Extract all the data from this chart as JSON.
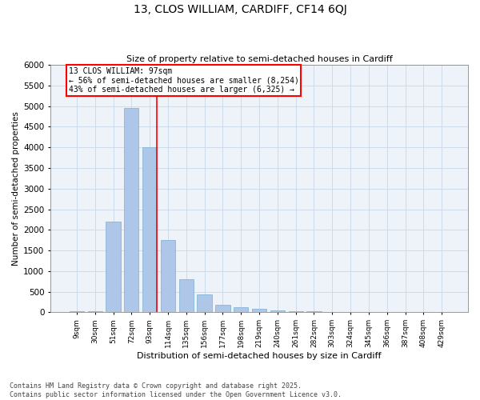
{
  "title": "13, CLOS WILLIAM, CARDIFF, CF14 6QJ",
  "subtitle": "Size of property relative to semi-detached houses in Cardiff",
  "xlabel": "Distribution of semi-detached houses by size in Cardiff",
  "ylabel": "Number of semi-detached properties",
  "categories": [
    "9sqm",
    "30sqm",
    "51sqm",
    "72sqm",
    "93sqm",
    "114sqm",
    "135sqm",
    "156sqm",
    "177sqm",
    "198sqm",
    "219sqm",
    "240sqm",
    "261sqm",
    "282sqm",
    "303sqm",
    "324sqm",
    "345sqm",
    "366sqm",
    "387sqm",
    "408sqm",
    "429sqm"
  ],
  "values": [
    25,
    30,
    2200,
    4950,
    4000,
    1750,
    800,
    430,
    175,
    130,
    80,
    55,
    30,
    20,
    10,
    8,
    5,
    3,
    2,
    1,
    1
  ],
  "bar_color": "#aec6e8",
  "bar_edge_color": "#7bafd4",
  "grid_color": "#c8d8e8",
  "background_color": "#eef3f9",
  "vline_pos": 4.4,
  "vline_color": "red",
  "annotation_text": "13 CLOS WILLIAM: 97sqm\n← 56% of semi-detached houses are smaller (8,254)\n43% of semi-detached houses are larger (6,325) →",
  "annotation_box_color": "white",
  "annotation_box_edge_color": "red",
  "footer_line1": "Contains HM Land Registry data © Crown copyright and database right 2025.",
  "footer_line2": "Contains public sector information licensed under the Open Government Licence v3.0.",
  "ylim": [
    0,
    6000
  ],
  "yticks": [
    0,
    500,
    1000,
    1500,
    2000,
    2500,
    3000,
    3500,
    4000,
    4500,
    5000,
    5500,
    6000
  ],
  "title_fontsize": 10,
  "subtitle_fontsize": 8,
  "ylabel_fontsize": 7.5,
  "xlabel_fontsize": 8,
  "tick_fontsize": 6.5,
  "ytick_fontsize": 7.5,
  "annotation_fontsize": 7,
  "footer_fontsize": 6
}
